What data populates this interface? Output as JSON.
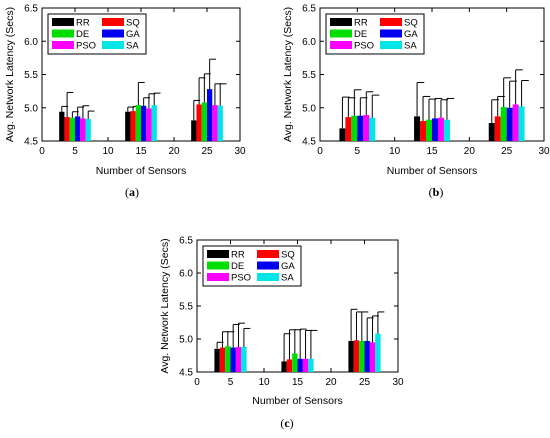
{
  "chart_data": [
    {
      "type": "bar",
      "caption": "a",
      "xlabel": "Number of Sensors",
      "ylabel": "Avg. Network Latency (Secs)",
      "xlim": [
        0,
        30
      ],
      "ylim": [
        4.5,
        6.5
      ],
      "xticks": [
        0,
        5,
        10,
        15,
        20,
        25,
        30
      ],
      "yticks": [
        4.5,
        5.0,
        5.5,
        6.0,
        6.5
      ],
      "ytick_labels": [
        "4.5",
        "5.0",
        "5.5",
        "6.0",
        "6.5"
      ],
      "grid": false,
      "legend": "top-left",
      "categories": [
        5,
        15,
        25
      ],
      "series": [
        {
          "name": "RR",
          "color": "#000000",
          "values": [
            4.94,
            4.94,
            4.81
          ],
          "errors": [
            0.08,
            0.07,
            0.3
          ]
        },
        {
          "name": "SQ",
          "color": "#ff0000",
          "values": [
            4.86,
            4.95,
            5.05
          ],
          "errors": [
            0.37,
            0.07,
            0.4
          ]
        },
        {
          "name": "DE",
          "color": "#00dd00",
          "values": [
            4.85,
            5.04,
            5.08
          ],
          "errors": [
            0.09,
            0.34,
            0.43
          ]
        },
        {
          "name": "GA",
          "color": "#0000ee",
          "values": [
            4.87,
            5.03,
            5.28
          ],
          "errors": [
            0.14,
            0.12,
            0.45
          ]
        },
        {
          "name": "PSO",
          "color": "#ff00ff",
          "values": [
            4.84,
            4.99,
            5.04
          ],
          "errors": [
            0.19,
            0.22,
            0.32
          ]
        },
        {
          "name": "SA",
          "color": "#00e5e5",
          "values": [
            4.83,
            5.04,
            5.03
          ],
          "errors": [
            0.12,
            0.18,
            0.33
          ]
        }
      ]
    },
    {
      "type": "bar",
      "caption": "b",
      "xlabel": "Number of Sensors",
      "ylabel": "Avg. Network Latency (Secs)",
      "xlim": [
        0,
        30
      ],
      "ylim": [
        4.5,
        6.5
      ],
      "xticks": [
        0,
        5,
        10,
        15,
        20,
        25,
        30
      ],
      "yticks": [
        4.5,
        5.0,
        5.5,
        6.0,
        6.5
      ],
      "ytick_labels": [
        "4.5",
        "5.0",
        "5.5",
        "6.0",
        "6.5"
      ],
      "grid": false,
      "legend": "top-left",
      "categories": [
        5,
        15,
        25
      ],
      "series": [
        {
          "name": "RR",
          "color": "#000000",
          "values": [
            4.69,
            4.87,
            4.77
          ],
          "errors": [
            0.47,
            0.51,
            0.35
          ]
        },
        {
          "name": "SQ",
          "color": "#ff0000",
          "values": [
            4.86,
            4.8,
            4.87
          ],
          "errors": [
            0.29,
            0.37,
            0.3
          ]
        },
        {
          "name": "DE",
          "color": "#00dd00",
          "values": [
            4.88,
            4.82,
            5.01
          ],
          "errors": [
            0.39,
            0.31,
            0.44
          ]
        },
        {
          "name": "GA",
          "color": "#0000ee",
          "values": [
            4.88,
            4.84,
            5.0
          ],
          "errors": [
            0.27,
            0.3,
            0.4
          ]
        },
        {
          "name": "PSO",
          "color": "#ff00ff",
          "values": [
            4.89,
            4.85,
            5.05
          ],
          "errors": [
            0.35,
            0.27,
            0.52
          ]
        },
        {
          "name": "SA",
          "color": "#00e5e5",
          "values": [
            4.85,
            4.82,
            5.02
          ],
          "errors": [
            0.34,
            0.32,
            0.39
          ]
        }
      ]
    },
    {
      "type": "bar",
      "caption": "c",
      "xlabel": "Number of Sensors",
      "ylabel": "Avg. Network Latency (Secs)",
      "xlim": [
        0,
        30
      ],
      "ylim": [
        4.5,
        6.5
      ],
      "xticks": [
        0,
        5,
        10,
        15,
        20,
        25,
        30
      ],
      "yticks": [
        4.5,
        5.0,
        5.5,
        6.0,
        6.5
      ],
      "ytick_labels": [
        "4.5",
        "5.0",
        "5.5",
        "6.0",
        "6.5"
      ],
      "grid": false,
      "legend": "top-left",
      "categories": [
        5,
        15,
        25
      ],
      "series": [
        {
          "name": "RR",
          "color": "#000000",
          "values": [
            4.85,
            4.66,
            4.97
          ],
          "errors": [
            0.1,
            0.42,
            0.48
          ]
        },
        {
          "name": "SQ",
          "color": "#ff0000",
          "values": [
            4.87,
            4.69,
            4.98
          ],
          "errors": [
            0.24,
            0.45,
            0.43
          ]
        },
        {
          "name": "DE",
          "color": "#00dd00",
          "values": [
            4.89,
            4.78,
            4.97
          ],
          "errors": [
            0.22,
            0.36,
            0.44
          ]
        },
        {
          "name": "GA",
          "color": "#0000ee",
          "values": [
            4.87,
            4.7,
            4.97
          ],
          "errors": [
            0.35,
            0.45,
            0.35
          ]
        },
        {
          "name": "PSO",
          "color": "#ff00ff",
          "values": [
            4.88,
            4.7,
            4.95
          ],
          "errors": [
            0.36,
            0.43,
            0.4
          ]
        },
        {
          "name": "SA",
          "color": "#00e5e5",
          "values": [
            4.88,
            4.7,
            5.08
          ],
          "errors": [
            0.28,
            0.43,
            0.33
          ]
        }
      ]
    }
  ]
}
